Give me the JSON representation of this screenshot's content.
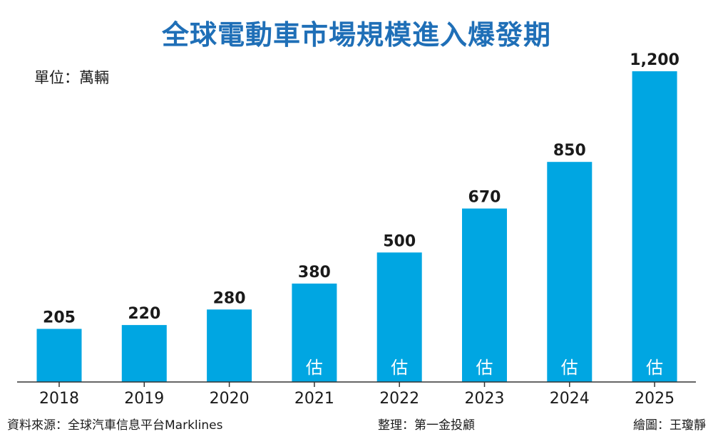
{
  "title": "全球電動車市場規模進入爆發期",
  "unit_label": "單位：萬輛",
  "chart_data": {
    "type": "bar",
    "categories": [
      "2018",
      "2019",
      "2020",
      "2021",
      "2022",
      "2023",
      "2024",
      "2025"
    ],
    "values": [
      205,
      220,
      280,
      380,
      500,
      670,
      850,
      1200
    ],
    "value_labels": [
      "205",
      "220",
      "280",
      "380",
      "500",
      "670",
      "850",
      "1,200"
    ],
    "estimate_marker": "估",
    "estimated": [
      false,
      false,
      false,
      true,
      true,
      true,
      true,
      true
    ],
    "ylim": [
      0,
      1200
    ],
    "grid": false,
    "bar_color": "#00a6e2"
  },
  "footer": {
    "source": "資料來源：全球汽車信息平台Marklines",
    "editor": "整理：第一金投顧",
    "credit": "繪圖：王瓊靜"
  }
}
